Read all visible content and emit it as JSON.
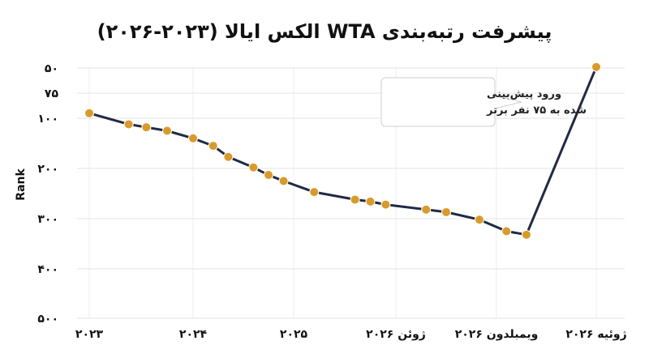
{
  "chart_data": {
    "type": "line",
    "title": "پیشرفت رتبه‌بندی WTA الکس ایالا (۲۰۲۳-۲۰۲۶)",
    "xlabel": "",
    "ylabel": "Rank",
    "y_scale": "linear-reversed",
    "ylim": [
      500,
      50
    ],
    "y_ticks": [
      50,
      75,
      100,
      200,
      300,
      400,
      500
    ],
    "y_tick_labels": [
      "۵۰",
      "۷۵",
      "۱۰۰",
      "۲۰۰",
      "۳۰۰",
      "۴۰۰",
      "۵۰۰"
    ],
    "x_tick_labels": [
      "۲۰۲۳",
      "۲۰۲۴",
      "۲۰۲۵",
      "ژوئن ۲۰۲۶",
      "ویمبلدون ۲۰۲۶",
      "ژوئیه ۲۰۲۶"
    ],
    "grid": true,
    "line_color": "#1f2a44",
    "marker_color": "#d89b2b",
    "series": [
      {
        "x": [
          0.0,
          0.38,
          0.55,
          0.75,
          1.0,
          1.2,
          1.35,
          1.6,
          1.75,
          1.9,
          2.2,
          2.6,
          2.75,
          2.9,
          3.3,
          3.5,
          3.83,
          4.1,
          4.3,
          5.0
        ],
        "values": [
          95,
          112,
          118,
          125,
          140,
          155,
          177,
          198,
          213,
          225,
          247,
          262,
          266,
          272,
          282,
          287,
          302,
          325,
          332,
          49
        ]
      }
    ],
    "annotations": [
      {
        "text_lines": [
          "ورود پیش‌بینی",
          "شده به ۷۵ نفر برتر"
        ],
        "point_index": 18
      }
    ]
  }
}
